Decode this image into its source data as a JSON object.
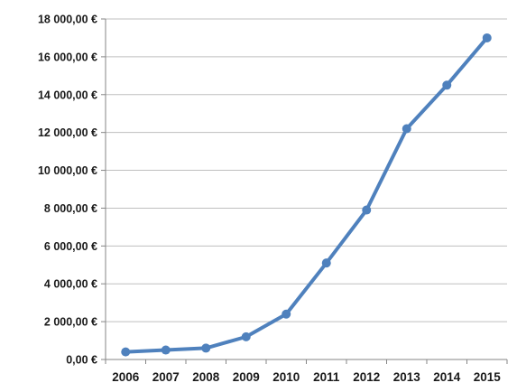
{
  "chart_data": {
    "type": "line",
    "title": "",
    "xlabel": "",
    "ylabel": "",
    "categories": [
      "2006",
      "2007",
      "2008",
      "2009",
      "2010",
      "2011",
      "2012",
      "2013",
      "2014",
      "2015"
    ],
    "series": [
      {
        "values": [
          400,
          500,
          600,
          1200,
          2400,
          5100,
          7900,
          12200,
          14500,
          17000
        ]
      }
    ],
    "ylim": [
      0,
      18000
    ],
    "y_ticks": [
      0,
      2000,
      4000,
      6000,
      8000,
      10000,
      12000,
      14000,
      16000,
      18000
    ],
    "y_tick_labels": [
      "0,00 €",
      "2 000,00 €",
      "4 000,00 €",
      "6 000,00 €",
      "8 000,00 €",
      "10 000,00 €",
      "12 000,00 €",
      "14 000,00 €",
      "16 000,00 €",
      "18 000,00 €"
    ],
    "grid": true,
    "legend": "none",
    "colors": {
      "line": "#4f81bd",
      "grid": "#bfbfbf",
      "axis": "#868686"
    }
  }
}
